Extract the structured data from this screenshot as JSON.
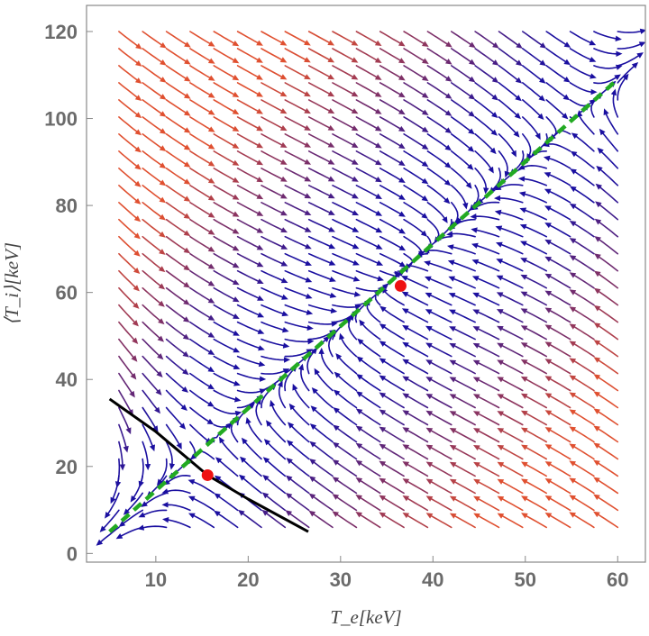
{
  "chart_data": {
    "type": "streamplot",
    "xlabel": "T_e[keV]",
    "ylabel": "⟨T_i⟩[keV]",
    "xlim": [
      2.5,
      63
    ],
    "ylim": [
      -2,
      126
    ],
    "x_ticks": [
      "10",
      "20",
      "30",
      "40",
      "50",
      "60"
    ],
    "y_ticks": [
      "0",
      "20",
      "40",
      "60",
      "80",
      "100",
      "120"
    ],
    "grid": false,
    "colors": {
      "stream_slow": "#1a0fa0",
      "stream_fast": "#e05030",
      "equilibrium_line": "#22aa22",
      "black_curve": "#000000",
      "fixed_points": "#ee1111",
      "frame": "#888888"
    },
    "equilibrium_line": {
      "style": "dashed",
      "points": [
        [
          5,
          5
        ],
        [
          60,
          109
        ]
      ]
    },
    "black_curve": {
      "points": [
        [
          5,
          35.5
        ],
        [
          10,
          28
        ],
        [
          15.6,
          18
        ],
        [
          20,
          12.5
        ],
        [
          26.5,
          5
        ]
      ]
    },
    "fixed_points": [
      {
        "x": 15.6,
        "y": 18
      },
      {
        "x": 36.5,
        "y": 61.5
      }
    ]
  }
}
